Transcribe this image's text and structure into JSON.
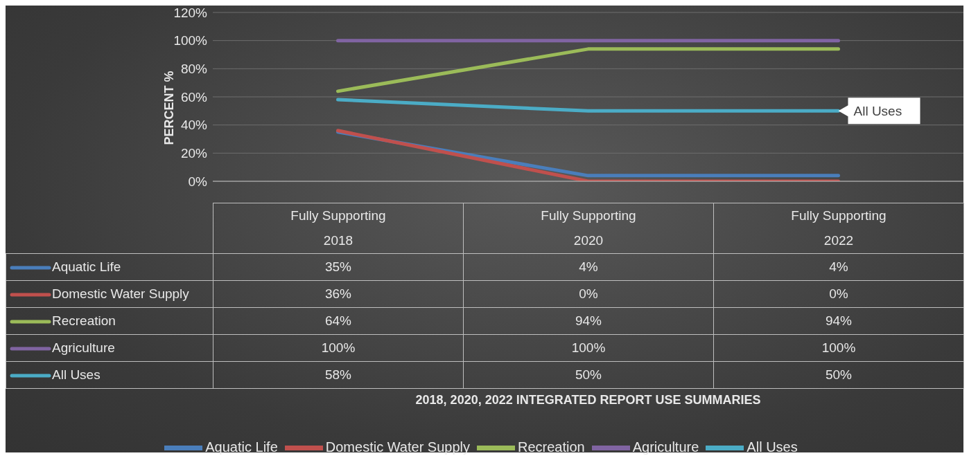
{
  "chart_data": {
    "type": "line",
    "ylabel": "PERCENT %",
    "categories": [
      "Fully Supporting\n2018",
      "Fully Supporting\n2020",
      "Fully Supporting\n2022"
    ],
    "series": [
      {
        "name": "Aquatic Life",
        "color": "#4a7ebb",
        "values": [
          35,
          4,
          4
        ],
        "value_labels": [
          "35%",
          "4%",
          "4%"
        ]
      },
      {
        "name": "Domestic Water Supply",
        "color": "#c0504d",
        "values": [
          36,
          0,
          0
        ],
        "value_labels": [
          "36%",
          "0%",
          "0%"
        ]
      },
      {
        "name": "Recreation",
        "color": "#9bbb59",
        "values": [
          64,
          94,
          94
        ],
        "value_labels": [
          "64%",
          "94%",
          "94%"
        ]
      },
      {
        "name": "Agriculture",
        "color": "#8064a2",
        "values": [
          100,
          100,
          100
        ],
        "value_labels": [
          "100%",
          "100%",
          "100%"
        ]
      },
      {
        "name": "All Uses",
        "color": "#4bacc6",
        "values": [
          58,
          50,
          50
        ],
        "value_labels": [
          "58%",
          "50%",
          "50%"
        ]
      }
    ],
    "ylim": [
      0,
      120
    ],
    "yticks": [
      {
        "value": 0,
        "label": "0%"
      },
      {
        "value": 20,
        "label": "20%"
      },
      {
        "value": 40,
        "label": "40%"
      },
      {
        "value": 60,
        "label": "60%"
      },
      {
        "value": 80,
        "label": "80%"
      },
      {
        "value": 100,
        "label": "100%"
      },
      {
        "value": 120,
        "label": "120%"
      }
    ],
    "grid": "y",
    "legend": "bottom",
    "marker": "none",
    "line_style": "solid",
    "annotations": [
      {
        "text": "All Uses",
        "x": "Fully Supporting\n2022",
        "y": 50
      },
      "2018, 2020, 2022 INTEGRATED REPORT USE SUMMARIES"
    ]
  }
}
